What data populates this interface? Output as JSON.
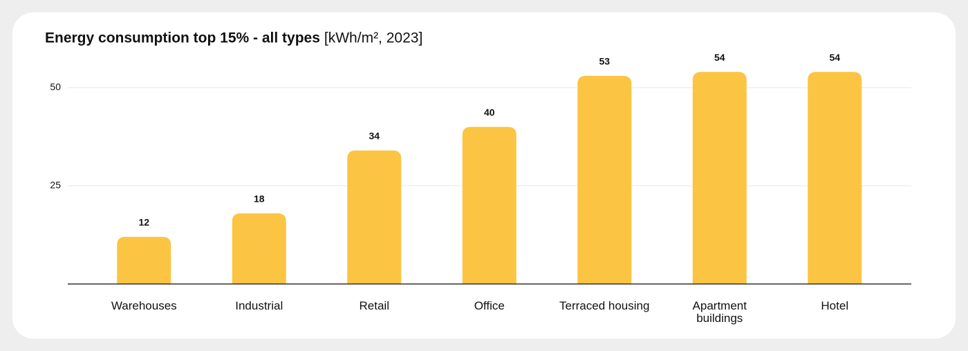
{
  "chart_data": {
    "type": "bar",
    "title": "Energy consumption top 15% - all types",
    "subtitle": "[kWh/m², 2023]",
    "categories": [
      "Warehouses",
      "Industrial",
      "Retail",
      "Office",
      "Terraced housing",
      "Apartment buildings",
      "Hotel"
    ],
    "values": [
      12,
      18,
      34,
      40,
      53,
      54,
      54
    ],
    "color": "#fcc443",
    "ylim": [
      0,
      60
    ],
    "yticks": [
      25,
      50
    ],
    "grid": true
  }
}
